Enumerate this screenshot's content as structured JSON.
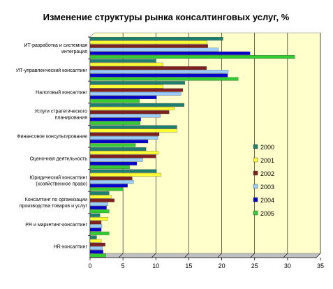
{
  "chart_data": {
    "type": "bar",
    "orientation": "horizontal",
    "title": "Изменение структуры рынка консалтинговых услуг, %",
    "xlabel": "",
    "ylabel": "",
    "xlim": [
      0,
      35
    ],
    "x_ticks": [
      0,
      5,
      10,
      15,
      20,
      25,
      30,
      35
    ],
    "grid": "vertical lines",
    "plot_background": "#ffffcc",
    "legend_position": "right",
    "categories": [
      [
        "ИТ-разработка и системная",
        "интеграция"
      ],
      [
        "ИТ-управленческий консалтинг"
      ],
      [
        "Налоговый консалтинг"
      ],
      [
        "Услуги стратегического",
        "планирования"
      ],
      [
        "Финансовое консультирование"
      ],
      [
        "Оценочная деятельность"
      ],
      [
        "Юридический консалтинг",
        "(хозяйственное право)"
      ],
      [
        "Консалтинг по организации",
        "производства товаров и услуг"
      ],
      [
        "PR и маркетинг-консалтинг"
      ],
      [
        "HR-консалтинг"
      ]
    ],
    "series": [
      {
        "name": "2000",
        "color": "#1f7f6f",
        "values": [
          20.2,
          10.0,
          14.4,
          14.3,
          13.2,
          8.5,
          10.1,
          2.9,
          1.5,
          1.0
        ]
      },
      {
        "name": "2001",
        "color": "#ffff33",
        "values": [
          17.8,
          11.1,
          11.1,
          12.8,
          13.2,
          10.4,
          10.8,
          3.2,
          2.7,
          1.7
        ]
      },
      {
        "name": "2002",
        "color": "#7f1f1f",
        "values": [
          17.9,
          17.7,
          14.1,
          12.0,
          10.5,
          10.0,
          6.4,
          3.7,
          1.7,
          2.3
        ]
      },
      {
        "name": "2003",
        "color": "#99ccff",
        "values": [
          19.5,
          21.0,
          13.8,
          10.7,
          10.3,
          8.0,
          6.6,
          2.7,
          1.8,
          1.9
        ]
      },
      {
        "name": "2004",
        "color": "#0000cc",
        "values": [
          24.3,
          20.9,
          10.1,
          7.7,
          8.8,
          7.1,
          5.7,
          2.5,
          1.7,
          2.0
        ]
      },
      {
        "name": "2005",
        "color": "#33cc33",
        "values": [
          31.1,
          22.5,
          7.5,
          7.6,
          6.9,
          6.0,
          5.0,
          2.9,
          2.9,
          2.4
        ]
      }
    ]
  }
}
